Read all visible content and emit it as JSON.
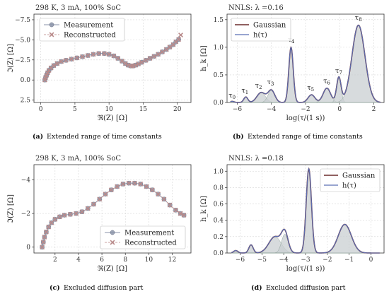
{
  "figure": {
    "captions": [
      {
        "letter": "(a)",
        "text": "Extended range of time constants"
      },
      {
        "letter": "(b)",
        "text": "Extended range of time constants"
      },
      {
        "letter": "(c)",
        "text": "Excluded diffusion part"
      },
      {
        "letter": "(d)",
        "text": "Excluded diffusion part"
      }
    ]
  },
  "chart_data": [
    {
      "id": "a",
      "type": "scatter",
      "title": "298 K, 3 mA, 100% SoC",
      "xlabel": "ℜ(Z) [Ω]",
      "ylabel": "ℑ(Z) [Ω]",
      "xlim": [
        -1,
        22
      ],
      "ylim": [
        2.8,
        -8.2
      ],
      "y_inverted": true,
      "xticks": [
        0,
        5,
        10,
        15,
        20
      ],
      "yticks": [
        -7.5,
        -5.0,
        -2.5,
        0.0,
        2.5
      ],
      "ytick_labels": [
        "−7.5",
        "−5.0",
        "−2.5",
        "0.0",
        "2.5"
      ],
      "grid": true,
      "legend": "top-left",
      "colors": {
        "measurement": "#8a93a8",
        "reconstructed": "#b88a8a"
      },
      "series": [
        {
          "name": "Measurement",
          "marker": "circle",
          "x": [
            0.6,
            0.7,
            0.85,
            1.0,
            1.2,
            1.5,
            1.9,
            2.4,
            3.0,
            3.7,
            4.5,
            5.3,
            6.1,
            6.9,
            7.7,
            8.5,
            9.3,
            10.0,
            10.7,
            11.3,
            11.9,
            12.4,
            12.8,
            13.2,
            13.5,
            13.9,
            14.3,
            14.8,
            15.4,
            16.0,
            16.6,
            17.2,
            17.8,
            18.4,
            18.9,
            19.4,
            19.8,
            20.2
          ],
          "y": [
            0.0,
            -0.3,
            -0.6,
            -0.9,
            -1.2,
            -1.5,
            -1.8,
            -2.05,
            -2.3,
            -2.45,
            -2.6,
            -2.75,
            -2.9,
            -3.05,
            -3.2,
            -3.3,
            -3.3,
            -3.2,
            -3.0,
            -2.7,
            -2.35,
            -2.05,
            -1.85,
            -1.75,
            -1.75,
            -1.85,
            -2.0,
            -2.2,
            -2.45,
            -2.7,
            -2.95,
            -3.2,
            -3.5,
            -3.8,
            -4.1,
            -4.4,
            -4.75,
            -5.05
          ]
        },
        {
          "name": "Reconstructed",
          "marker": "x",
          "x": [
            0.6,
            0.7,
            0.85,
            1.0,
            1.2,
            1.5,
            1.9,
            2.4,
            3.0,
            3.7,
            4.5,
            5.3,
            6.1,
            6.9,
            7.7,
            8.5,
            9.3,
            10.0,
            10.7,
            11.3,
            11.9,
            12.4,
            12.8,
            13.2,
            13.5,
            13.9,
            14.3,
            14.8,
            15.4,
            16.0,
            16.6,
            17.2,
            17.8,
            18.4,
            18.9,
            19.4,
            19.8,
            20.2,
            20.5
          ],
          "y": [
            0.0,
            -0.3,
            -0.6,
            -0.9,
            -1.2,
            -1.5,
            -1.8,
            -2.05,
            -2.3,
            -2.45,
            -2.6,
            -2.75,
            -2.9,
            -3.05,
            -3.2,
            -3.3,
            -3.3,
            -3.2,
            -3.0,
            -2.7,
            -2.35,
            -2.05,
            -1.85,
            -1.75,
            -1.75,
            -1.85,
            -2.0,
            -2.2,
            -2.45,
            -2.7,
            -2.95,
            -3.2,
            -3.5,
            -3.8,
            -4.1,
            -4.4,
            -4.75,
            -5.05,
            -5.6
          ]
        }
      ]
    },
    {
      "id": "b",
      "type": "area",
      "title": "NNLS: λ =0.16",
      "xlabel": "log(τ/(1 s))",
      "ylabel": "h_k [Ω]",
      "xlim": [
        -6.6,
        2.6
      ],
      "ylim": [
        0,
        1.6
      ],
      "xticks": [
        -6,
        -4,
        -2,
        0,
        2
      ],
      "xtick_labels": [
        "−6",
        "−4",
        "−2",
        "0",
        "2"
      ],
      "yticks": [
        0.0,
        0.5,
        1.0,
        1.5
      ],
      "ytick_labels": [
        "0.0",
        "0.5",
        "1.0",
        "1.5"
      ],
      "grid": true,
      "legend": "top-left",
      "colors": {
        "gaussian": "#6b2b2b",
        "h": "#5a6fb5",
        "fill": "#c9cfd2"
      },
      "series": [
        {
          "name": "Gaussian"
        },
        {
          "name": "h(τ)"
        }
      ],
      "peaks": [
        {
          "center": -6.3,
          "height": 0.02,
          "width": 0.12
        },
        {
          "center": -5.5,
          "height": 0.1,
          "width": 0.12
        },
        {
          "center": -4.6,
          "height": 0.18,
          "width": 0.25
        },
        {
          "center": -4.0,
          "height": 0.22,
          "width": 0.2
        },
        {
          "center": -2.85,
          "height": 1.0,
          "width": 0.13
        },
        {
          "center": -1.65,
          "height": 0.14,
          "width": 0.2
        },
        {
          "center": -0.75,
          "height": 0.26,
          "width": 0.22
        },
        {
          "center": -0.05,
          "height": 0.45,
          "width": 0.13
        },
        {
          "center": 1.1,
          "height": 1.4,
          "width": 0.38
        }
      ],
      "peak_labels": [
        {
          "text": "τ",
          "sub": "0",
          "x": -6.3,
          "y": 0.09
        },
        {
          "text": "τ",
          "sub": "1",
          "x": -5.55,
          "y": 0.18
        },
        {
          "text": "τ",
          "sub": "2",
          "x": -4.75,
          "y": 0.27
        },
        {
          "text": "τ",
          "sub": "3",
          "x": -4.05,
          "y": 0.33
        },
        {
          "text": "τ",
          "sub": "4",
          "x": -2.85,
          "y": 1.1
        },
        {
          "text": "τ",
          "sub": "5",
          "x": -1.7,
          "y": 0.23
        },
        {
          "text": "τ",
          "sub": "6",
          "x": -0.75,
          "y": 0.35
        },
        {
          "text": "τ",
          "sub": "7",
          "x": -0.05,
          "y": 0.54
        },
        {
          "text": "τ",
          "sub": "8",
          "x": 1.1,
          "y": 1.5
        }
      ]
    },
    {
      "id": "c",
      "type": "scatter",
      "title": "298 K, 3 mA, 100% SoC",
      "xlabel": "ℜ(Z) [Ω]",
      "ylabel": "ℑ(Z) [Ω]",
      "xlim": [
        0.2,
        13.6
      ],
      "ylim": [
        0.35,
        -4.9
      ],
      "y_inverted": true,
      "xticks": [
        2,
        4,
        6,
        8,
        10,
        12
      ],
      "yticks": [
        -4,
        -2,
        0
      ],
      "ytick_labels": [
        "−4",
        "−2",
        "0"
      ],
      "grid": true,
      "legend": "bottom-right",
      "colors": {
        "measurement": "#8a93a8",
        "reconstructed": "#b88a8a"
      },
      "series": [
        {
          "name": "Measurement",
          "marker": "circle",
          "x": [
            0.9,
            1.0,
            1.1,
            1.25,
            1.45,
            1.7,
            2.0,
            2.4,
            2.8,
            3.3,
            3.8,
            4.3,
            4.8,
            5.3,
            5.8,
            6.3,
            6.8,
            7.3,
            7.8,
            8.3,
            8.8,
            9.3,
            9.8,
            10.3,
            10.8,
            11.3,
            11.8,
            12.3,
            12.7,
            13.0
          ],
          "y": [
            0.0,
            -0.3,
            -0.6,
            -0.9,
            -1.2,
            -1.45,
            -1.65,
            -1.8,
            -1.9,
            -1.95,
            -2.0,
            -2.1,
            -2.3,
            -2.55,
            -2.85,
            -3.15,
            -3.4,
            -3.6,
            -3.75,
            -3.8,
            -3.8,
            -3.75,
            -3.6,
            -3.4,
            -3.15,
            -2.85,
            -2.5,
            -2.2,
            -2.0,
            -1.9
          ]
        },
        {
          "name": "Reconstructed",
          "marker": "x",
          "x": [
            0.9,
            1.0,
            1.1,
            1.25,
            1.45,
            1.7,
            2.0,
            2.4,
            2.8,
            3.3,
            3.8,
            4.3,
            4.8,
            5.3,
            5.8,
            6.3,
            6.8,
            7.3,
            7.8,
            8.3,
            8.8,
            9.3,
            9.8,
            10.3,
            10.8,
            11.3,
            11.8,
            12.3,
            12.7,
            13.0
          ],
          "y": [
            0.0,
            -0.3,
            -0.6,
            -0.9,
            -1.2,
            -1.45,
            -1.65,
            -1.8,
            -1.9,
            -1.95,
            -2.0,
            -2.1,
            -2.3,
            -2.55,
            -2.85,
            -3.15,
            -3.4,
            -3.6,
            -3.75,
            -3.8,
            -3.8,
            -3.75,
            -3.6,
            -3.4,
            -3.15,
            -2.85,
            -2.5,
            -2.2,
            -2.0,
            -1.9
          ]
        }
      ]
    },
    {
      "id": "d",
      "type": "area",
      "title": "NNLS: λ =0.18",
      "xlabel": "log(τ/(1 s))",
      "ylabel": "h_k [Ω]",
      "xlim": [
        -6.6,
        0.6
      ],
      "ylim": [
        0,
        1.08
      ],
      "xticks": [
        -6,
        -5,
        -4,
        -3,
        -2,
        -1,
        0
      ],
      "xtick_labels": [
        "−6",
        "−5",
        "−4",
        "−3",
        "−2",
        "−1",
        "0"
      ],
      "yticks": [
        0.0,
        0.2,
        0.4,
        0.6,
        0.8,
        1.0
      ],
      "ytick_labels": [
        "0.0",
        "0.2",
        "0.4",
        "0.6",
        "0.8",
        "1.0"
      ],
      "grid": true,
      "legend": "top-right",
      "colors": {
        "gaussian": "#6b2b2b",
        "h": "#5a6fb5",
        "fill": "#c9cfd2"
      },
      "series": [
        {
          "name": "Gaussian"
        },
        {
          "name": "h(τ)"
        }
      ],
      "peaks": [
        {
          "center": -6.2,
          "height": 0.03,
          "width": 0.1
        },
        {
          "center": -5.5,
          "height": 0.1,
          "width": 0.1
        },
        {
          "center": -4.4,
          "height": 0.2,
          "width": 0.28
        },
        {
          "center": -3.95,
          "height": 0.23,
          "width": 0.15
        },
        {
          "center": -2.85,
          "height": 1.03,
          "width": 0.12
        },
        {
          "center": -1.2,
          "height": 0.35,
          "width": 0.3
        }
      ]
    }
  ]
}
